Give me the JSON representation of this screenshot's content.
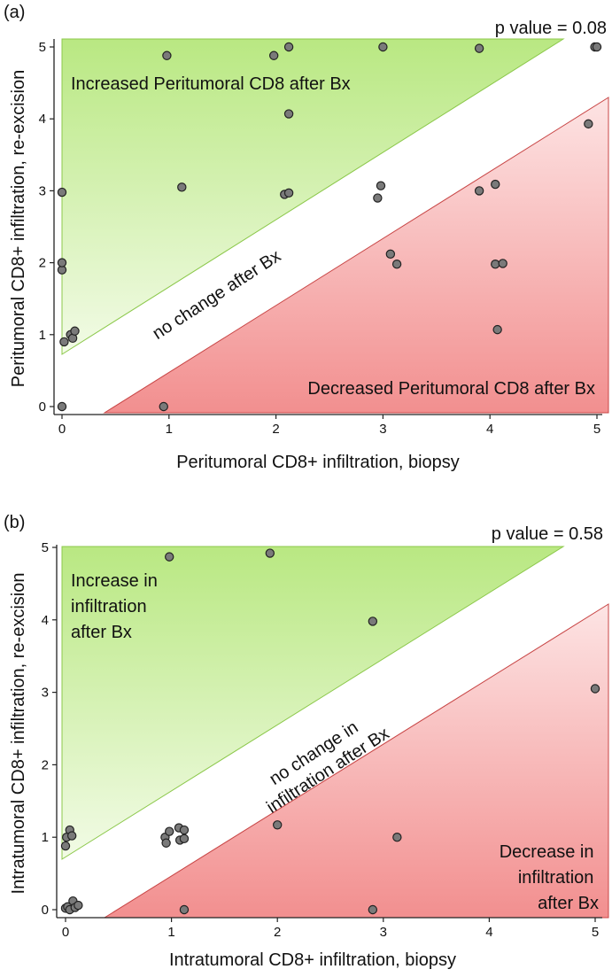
{
  "colors": {
    "increase_fill_top": "#b9e882",
    "increase_fill_bottom": "#f2fbe6",
    "increase_stroke": "#8cc84b",
    "decrease_fill_top": "#fde4e4",
    "decrease_fill_bottom": "#f28f8f",
    "decrease_stroke": "#c84646",
    "point_fill": "#7a7a7a",
    "point_stroke": "#222222"
  },
  "chart_data": [
    {
      "type": "scatter",
      "panel_label": "(a)",
      "annotation": "p value = 0.08",
      "xlabel": "Peritumoral CD8+ infiltration, biopsy",
      "ylabel": "Peritumoral CD8+ infiltration, re-excision",
      "xlim": [
        0,
        5
      ],
      "ylim": [
        0,
        5
      ],
      "xticks": [
        "0",
        "1",
        "2",
        "3",
        "4",
        "5"
      ],
      "yticks": [
        "0",
        "1",
        "2",
        "3",
        "4",
        "5"
      ],
      "grid": false,
      "regions": {
        "increase": "Increased Peritumoral CD8 after Bx",
        "no_change": "no change after Bx",
        "decrease": "Decreased Peritumoral CD8 after Bx"
      },
      "points": [
        {
          "x": 0.0,
          "y": 0.0
        },
        {
          "x": 0.95,
          "y": 0.0
        },
        {
          "x": 0.02,
          "y": 0.9
        },
        {
          "x": 0.08,
          "y": 1.0
        },
        {
          "x": 0.1,
          "y": 0.95
        },
        {
          "x": 0.12,
          "y": 1.05
        },
        {
          "x": 0.0,
          "y": 1.9
        },
        {
          "x": 0.0,
          "y": 2.0
        },
        {
          "x": 0.0,
          "y": 2.98
        },
        {
          "x": 0.98,
          "y": 4.88
        },
        {
          "x": 1.12,
          "y": 3.05
        },
        {
          "x": 1.98,
          "y": 4.88
        },
        {
          "x": 2.08,
          "y": 2.95
        },
        {
          "x": 2.12,
          "y": 2.97
        },
        {
          "x": 2.12,
          "y": 4.07
        },
        {
          "x": 2.12,
          "y": 5.0
        },
        {
          "x": 2.95,
          "y": 2.9
        },
        {
          "x": 2.98,
          "y": 3.07
        },
        {
          "x": 3.0,
          "y": 5.0
        },
        {
          "x": 3.07,
          "y": 2.12
        },
        {
          "x": 3.13,
          "y": 1.98
        },
        {
          "x": 3.9,
          "y": 3.0
        },
        {
          "x": 3.9,
          "y": 4.98
        },
        {
          "x": 4.05,
          "y": 1.98
        },
        {
          "x": 4.05,
          "y": 3.09
        },
        {
          "x": 4.07,
          "y": 1.07
        },
        {
          "x": 4.12,
          "y": 1.99
        },
        {
          "x": 4.92,
          "y": 3.93
        },
        {
          "x": 4.98,
          "y": 5.0
        },
        {
          "x": 5.0,
          "y": 5.0
        }
      ]
    },
    {
      "type": "scatter",
      "panel_label": "(b)",
      "annotation": "p value = 0.58",
      "xlabel": "Intratumoral CD8+ infiltration, biopsy",
      "ylabel": "Intratumoral CD8+ infiltration, re-excision",
      "xlim": [
        0,
        5
      ],
      "ylim": [
        0,
        5
      ],
      "xticks": [
        "0",
        "1",
        "2",
        "3",
        "4",
        "5"
      ],
      "yticks": [
        "0",
        "1",
        "2",
        "3",
        "4",
        "5"
      ],
      "grid": false,
      "regions": {
        "increase": [
          "Increase in",
          "infiltration",
          "after Bx"
        ],
        "no_change": [
          "no change in",
          "infiltration after Bx"
        ],
        "decrease": [
          "Decrease in",
          "infiltration",
          "after Bx"
        ]
      },
      "points": [
        {
          "x": 0.0,
          "y": 0.02
        },
        {
          "x": 0.02,
          "y": 0.04
        },
        {
          "x": 0.04,
          "y": 0.0
        },
        {
          "x": 0.07,
          "y": 0.12
        },
        {
          "x": 0.09,
          "y": 0.03
        },
        {
          "x": 0.12,
          "y": 0.06
        },
        {
          "x": 0.0,
          "y": 0.88
        },
        {
          "x": 0.01,
          "y": 1.0
        },
        {
          "x": 0.04,
          "y": 1.1
        },
        {
          "x": 0.06,
          "y": 1.02
        },
        {
          "x": 0.94,
          "y": 1.0
        },
        {
          "x": 0.95,
          "y": 0.92
        },
        {
          "x": 0.98,
          "y": 1.08
        },
        {
          "x": 1.07,
          "y": 1.13
        },
        {
          "x": 1.08,
          "y": 0.96
        },
        {
          "x": 1.12,
          "y": 1.1
        },
        {
          "x": 1.12,
          "y": 0.98
        },
        {
          "x": 0.98,
          "y": 4.87
        },
        {
          "x": 1.12,
          "y": 0.0
        },
        {
          "x": 1.93,
          "y": 4.92
        },
        {
          "x": 2.0,
          "y": 1.17
        },
        {
          "x": 2.9,
          "y": 3.98
        },
        {
          "x": 2.9,
          "y": 0.0
        },
        {
          "x": 3.13,
          "y": 1.0
        },
        {
          "x": 5.0,
          "y": 3.05
        }
      ]
    }
  ]
}
